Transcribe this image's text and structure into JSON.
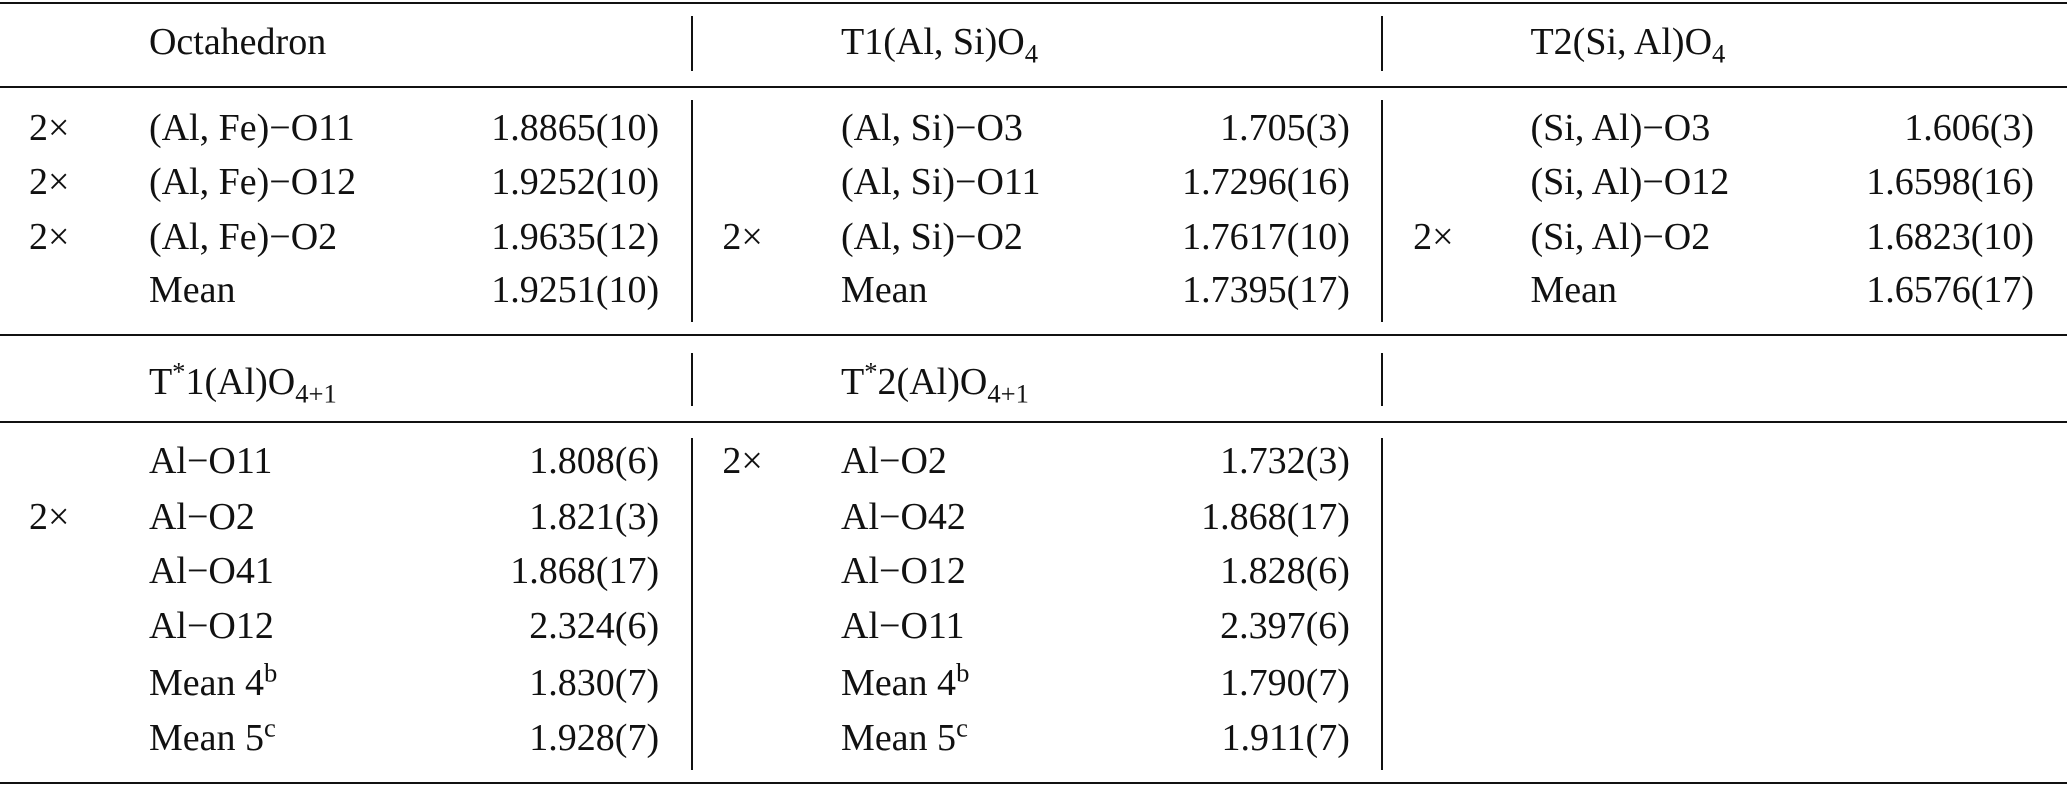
{
  "table": {
    "sections": [
      {
        "headers": [
          [
            {
              "text": "Octahedron"
            }
          ],
          [
            {
              "text": "T1(Al, Si)O"
            },
            {
              "sub": "4"
            }
          ],
          [
            {
              "text": "T2(Si, Al)O"
            },
            {
              "sub": "4"
            }
          ]
        ],
        "groups": [
          [
            {
              "mult": "2×",
              "label": "(Al, Fe)−O11",
              "value": "1.8865(10)"
            },
            {
              "mult": "2×",
              "label": "(Al, Fe)−O12",
              "value": "1.9252(10)"
            },
            {
              "mult": "2×",
              "label": "(Al, Fe)−O2",
              "value": "1.9635(12)"
            },
            {
              "label": "Mean",
              "value": "1.9251(10)"
            }
          ],
          [
            {
              "label": "(Al, Si)−O3",
              "value": "1.705(3)"
            },
            {
              "label": "(Al, Si)−O11",
              "value": "1.7296(16)"
            },
            {
              "mult": "2×",
              "label": "(Al, Si)−O2",
              "value": "1.7617(10)"
            },
            {
              "label": "Mean",
              "value": "1.7395(17)"
            }
          ],
          [
            {
              "label": "(Si, Al)−O3",
              "value": "1.606(3)"
            },
            {
              "label": "(Si, Al)−O12",
              "value": "1.6598(16)"
            },
            {
              "mult": "2×",
              "label": "(Si, Al)−O2",
              "value": "1.6823(10)"
            },
            {
              "label": "Mean",
              "value": "1.6576(17)"
            }
          ]
        ]
      },
      {
        "headers": [
          [
            {
              "text": "T"
            },
            {
              "sup": "*"
            },
            {
              "text": "1(Al)O"
            },
            {
              "sub": "4+1"
            }
          ],
          [
            {
              "text": "T"
            },
            {
              "sup": "*"
            },
            {
              "text": "2(Al)O"
            },
            {
              "sub": "4+1"
            }
          ]
        ],
        "groups": [
          [
            {
              "label": "Al−O11",
              "value": "1.808(6)"
            },
            {
              "mult": "2×",
              "label": "Al−O2",
              "value": "1.821(3)"
            },
            {
              "label": "Al−O41",
              "value": "1.868(17)"
            },
            {
              "label": "Al−O12",
              "value": "2.324(6)"
            },
            {
              "label": "Mean 4",
              "sup": "b",
              "value": "1.830(7)"
            },
            {
              "label": "Mean 5",
              "sup": "c",
              "value": "1.928(7)"
            }
          ],
          [
            {
              "mult": "2×",
              "label": "Al−O2",
              "value": "1.732(3)"
            },
            {
              "label": "Al−O42",
              "value": "1.868(17)"
            },
            {
              "label": "Al−O12",
              "value": "1.828(6)"
            },
            {
              "label": "Al−O11",
              "value": "2.397(6)"
            },
            {
              "label": "Mean 4",
              "sup": "b",
              "value": "1.790(7)"
            },
            {
              "label": "Mean 5",
              "sup": "c",
              "value": "1.911(7)"
            }
          ]
        ]
      }
    ]
  }
}
